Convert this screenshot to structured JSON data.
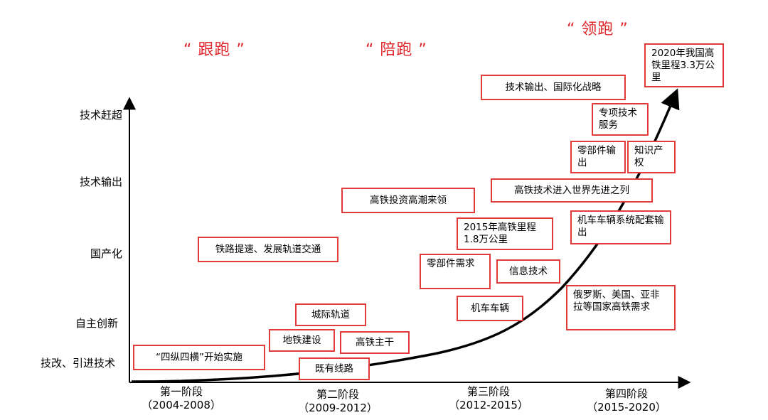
{
  "phases": [
    "“ 跟跑 ”",
    "“ 陪跑 ”",
    "“ 领跑 ”"
  ],
  "y_axis": [
    "技术赶超",
    "技术输出",
    "国产化",
    "自主创新",
    "技改、引进技术"
  ],
  "stages": [
    {
      "name": "第一阶段",
      "years": "（2004-2008）"
    },
    {
      "name": "第二阶段",
      "years": "（2009-2012）"
    },
    {
      "name": "第三阶段",
      "years": "（2012-2015）"
    },
    {
      "name": "第四阶段",
      "years": "（2015-2020）"
    }
  ],
  "boxes": [
    "“四纵四横”开始实施",
    "既有线路",
    "地铁建设",
    "高铁主干",
    "城际轨道",
    "铁路提速、发展轨道交通",
    "高铁投资高潮来领",
    "零部件需求",
    "机车车辆",
    "2015年高铁里程1.8万公里",
    "信息技术",
    "高铁技术进入世界先进之列",
    "机车车辆系统配套输出",
    "俄罗斯、美国、亚非拉等国家高铁需求",
    "技术输出、国际化战略",
    "专项技术服务",
    "零部件输出",
    "知识产权",
    "2020年我国高铁里程3.3万公里"
  ]
}
